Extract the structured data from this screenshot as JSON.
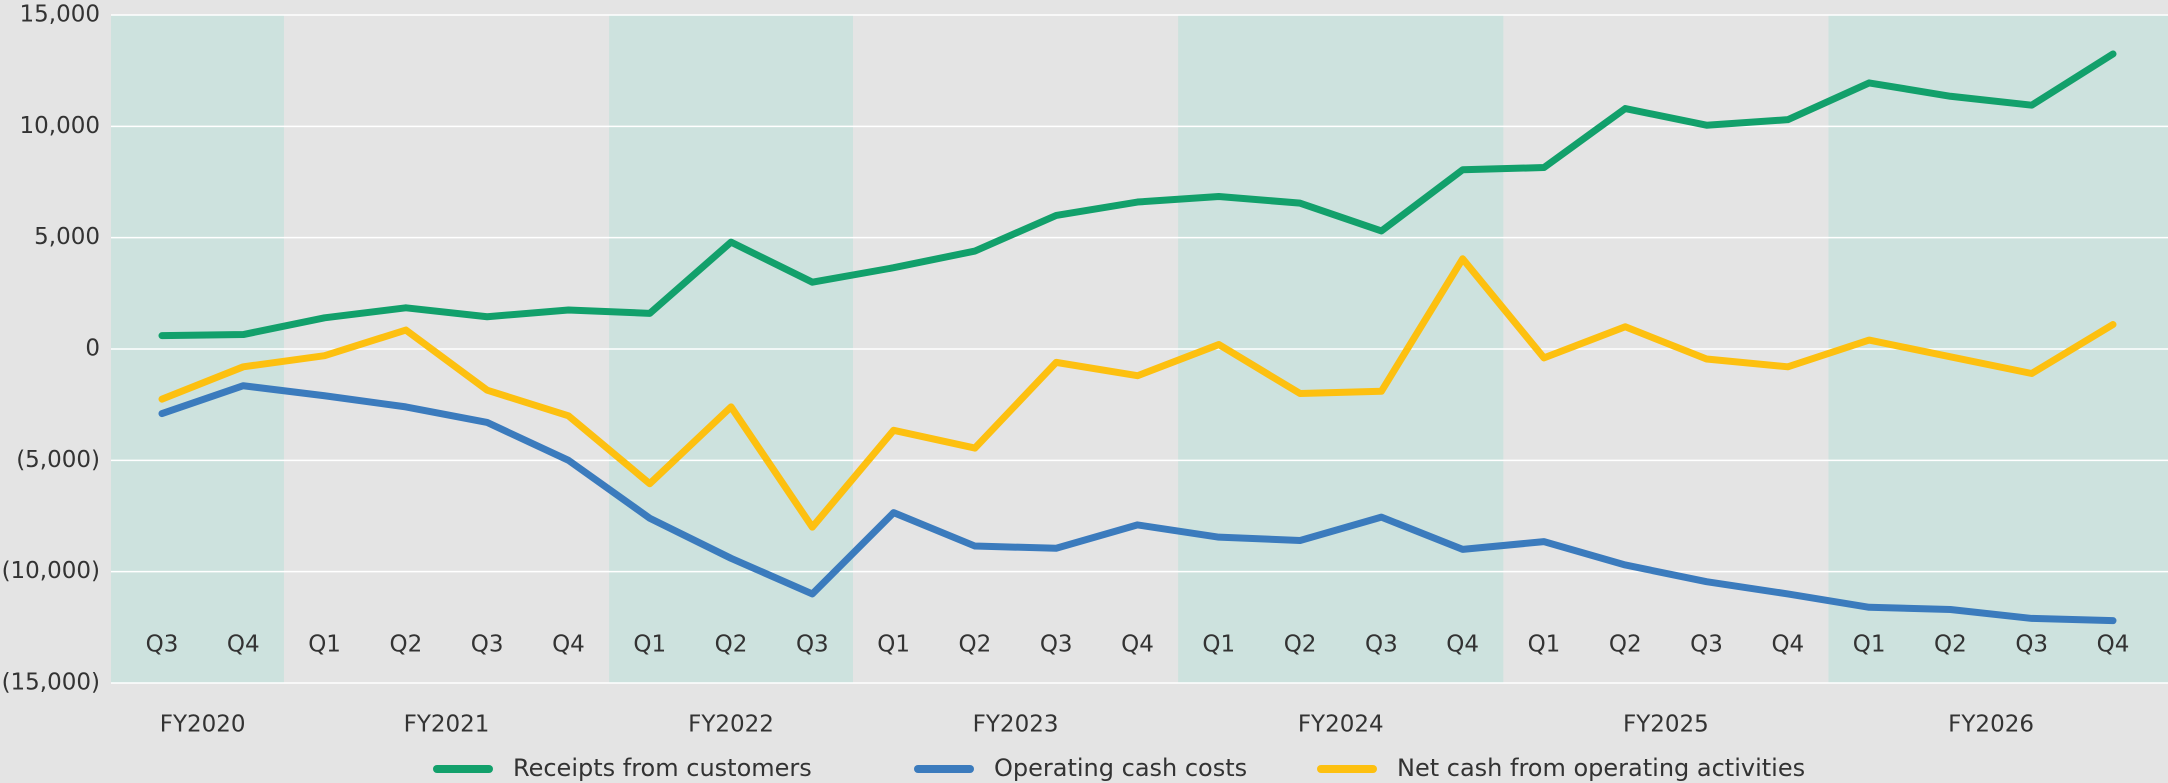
{
  "chart_data": {
    "type": "line",
    "categories": [
      "Q3",
      "Q4",
      "Q1",
      "Q2",
      "Q3",
      "Q4",
      "Q1",
      "Q2",
      "Q3",
      "Q1",
      "Q2",
      "Q3",
      "Q4",
      "Q1",
      "Q2",
      "Q3",
      "Q4",
      "Q1",
      "Q2",
      "Q3",
      "Q4",
      "Q1",
      "Q2",
      "Q3",
      "Q4"
    ],
    "fiscal_years": [
      "FY2020",
      "FY2021",
      "FY2022",
      "FY2023",
      "FY2024",
      "FY2025",
      "FY2026"
    ],
    "series": [
      {
        "name": "Receipts from customers",
        "color": "#12a06b",
        "values": [
          600,
          650,
          1400,
          1850,
          1450,
          1750,
          1600,
          4800,
          3000,
          3650,
          4400,
          6000,
          6600,
          6850,
          6550,
          5300,
          8050,
          8150,
          10800,
          10050,
          10300,
          11950,
          11350,
          10950,
          13250
        ]
      },
      {
        "name": "Operating cash costs",
        "color": "#3b7bbd",
        "values": [
          -2900,
          -1650,
          -2100,
          -2600,
          -3300,
          -5000,
          -7600,
          -9400,
          -11000,
          -7350,
          -8850,
          -8950,
          -7900,
          -8450,
          -8600,
          -7550,
          -9000,
          -8650,
          -9700,
          -10450,
          -11000,
          -11600,
          -11700,
          -12100,
          -12200
        ]
      },
      {
        "name": "Net cash from operating activities",
        "color": "#fdc010",
        "values": [
          -2250,
          -800,
          -300,
          850,
          -1850,
          -3000,
          -6050,
          -2600,
          -8000,
          -3650,
          -4450,
          -600,
          -1200,
          200,
          -2000,
          -1900,
          4050,
          -400,
          1000,
          -450,
          -800,
          400,
          -350,
          -1100,
          1100
        ]
      }
    ],
    "ylim": [
      -15000,
      15000
    ],
    "yticks": [
      {
        "value": -15000,
        "label": "(15,000)"
      },
      {
        "value": -10000,
        "label": "(10,000)"
      },
      {
        "value": -5000,
        "label": "(5,000)"
      },
      0,
      {
        "value": 5000,
        "label": "5,000"
      },
      {
        "value": 10000,
        "label": "10,000"
      },
      {
        "value": 15000,
        "label": "15,000"
      }
    ],
    "grid": true,
    "legend": "bottom"
  }
}
